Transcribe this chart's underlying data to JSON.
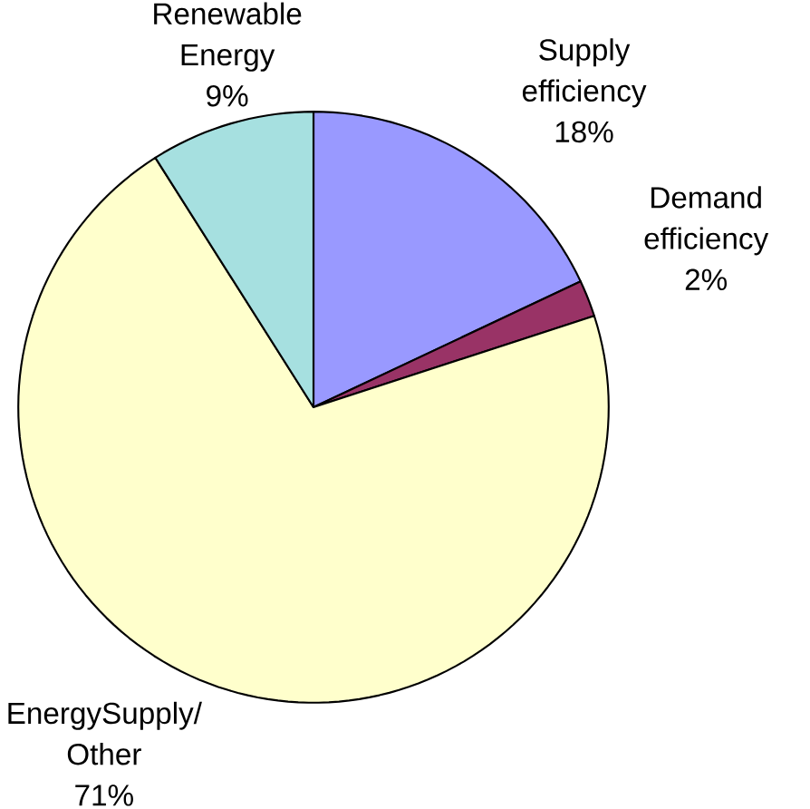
{
  "chart_data": {
    "type": "pie",
    "categories": [
      "Supply efficiency",
      "Demand efficiency",
      "EnergySupply/ Other",
      "Renewable Energy"
    ],
    "values": [
      18,
      2,
      71,
      9
    ],
    "value_labels": [
      "18%",
      "2%",
      "71%",
      "9%"
    ],
    "colors": [
      "#9999ff",
      "#993366",
      "#ffffcc",
      "#a6e0e0"
    ]
  }
}
